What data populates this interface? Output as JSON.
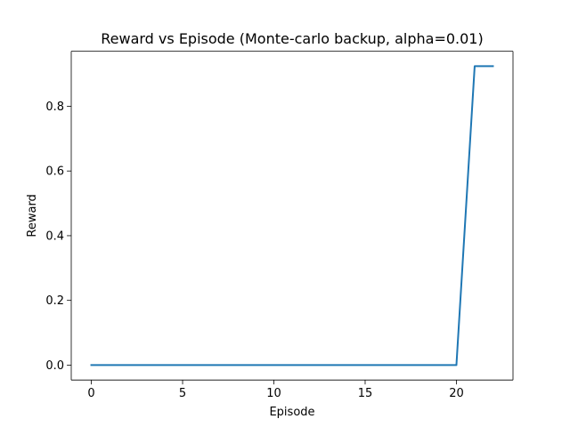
{
  "chart_data": {
    "type": "line",
    "title": "Reward vs Episode (Monte-carlo backup, alpha=0.01)",
    "xlabel": "Episode",
    "ylabel": "Reward",
    "xlim": [
      -1.1,
      23.1
    ],
    "ylim": [
      -0.0462,
      0.9702
    ],
    "xticks": [
      0,
      5,
      10,
      15,
      20
    ],
    "xtick_labels": [
      "0",
      "5",
      "10",
      "15",
      "20"
    ],
    "yticks": [
      0.0,
      0.2,
      0.4,
      0.6,
      0.8
    ],
    "ytick_labels": [
      "0.0",
      "0.2",
      "0.4",
      "0.6",
      "0.8"
    ],
    "grid": false,
    "series": [
      {
        "color": "#1f77b4",
        "x": [
          0,
          1,
          2,
          3,
          4,
          5,
          6,
          7,
          8,
          9,
          10,
          11,
          12,
          13,
          14,
          15,
          16,
          17,
          18,
          19,
          20,
          21,
          22
        ],
        "y": [
          0,
          0,
          0,
          0,
          0,
          0,
          0,
          0,
          0,
          0,
          0,
          0,
          0,
          0,
          0,
          0,
          0,
          0,
          0,
          0,
          0,
          0.924,
          0.924
        ]
      }
    ]
  }
}
